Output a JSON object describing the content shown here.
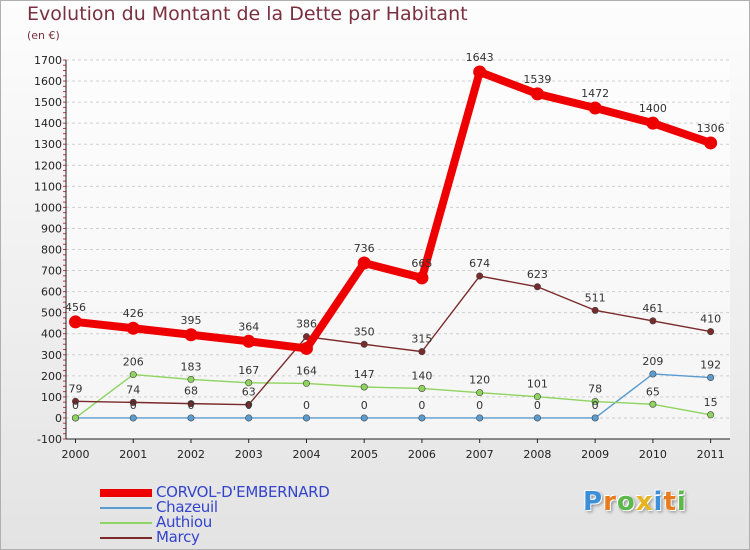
{
  "title": "Evolution du Montant de la Dette par Habitant",
  "subtitle": "(en €)",
  "brand": {
    "text": "Proxiti",
    "letters": [
      {
        "ch": "P",
        "color": "#3a8fd8"
      },
      {
        "ch": "r",
        "color": "#e87b1e"
      },
      {
        "ch": "o",
        "color": "#5cb84a"
      },
      {
        "ch": "x",
        "color": "#e8b41e"
      },
      {
        "ch": "i",
        "color": "#3a8fd8"
      },
      {
        "ch": "t",
        "color": "#e87b1e"
      },
      {
        "ch": "i",
        "color": "#5cb84a"
      }
    ]
  },
  "chart_data": {
    "type": "line",
    "title": "Evolution du Montant de la Dette par Habitant",
    "subtitle": "(en €)",
    "x": [
      "2000",
      "2001",
      "2002",
      "2003",
      "2004",
      "2005",
      "2006",
      "2007",
      "2008",
      "2009",
      "2010",
      "2011"
    ],
    "ylim": [
      -100,
      1700
    ],
    "yticks": [
      -100,
      0,
      100,
      200,
      300,
      400,
      500,
      600,
      700,
      800,
      900,
      1000,
      1100,
      1200,
      1300,
      1400,
      1500,
      1600,
      1700
    ],
    "ytick_labels": [
      "-100",
      "0",
      "100",
      "200",
      "300",
      "400",
      "500",
      "600",
      "700",
      "800",
      "900",
      "1000",
      "1100",
      "1200",
      "1300",
      "1400",
      "1500",
      "1600",
      "1700"
    ],
    "grid": "horizontal",
    "legend_position": "bottom-left",
    "series": [
      {
        "name": "CORVOL-D'EMBERNARD",
        "color": "#ee0000",
        "values": [
          456,
          426,
          395,
          364,
          330,
          736,
          665,
          1643,
          1539,
          1472,
          1400,
          1306
        ],
        "labels": [
          "456",
          "426",
          "395",
          "364",
          "",
          "736",
          "665",
          "1643",
          "1539",
          "1472",
          "1400",
          "1306"
        ]
      },
      {
        "name": "Chazeuil",
        "color": "#5a9bd0",
        "values": [
          0,
          0,
          0,
          0,
          0,
          0,
          0,
          0,
          0,
          0,
          209,
          192
        ],
        "labels": [
          "0",
          "0",
          "0",
          "0",
          "0",
          "0",
          "0",
          "0",
          "0",
          "0",
          "209",
          "192"
        ]
      },
      {
        "name": "Authiou",
        "color": "#8ed45e",
        "values": [
          0,
          206,
          183,
          167,
          164,
          147,
          140,
          120,
          101,
          78,
          65,
          15
        ],
        "labels": [
          "",
          "206",
          "183",
          "167",
          "164",
          "147",
          "140",
          "120",
          "101",
          "78",
          "65",
          "15"
        ]
      },
      {
        "name": "Marcy",
        "color": "#7a2a2a",
        "values": [
          79,
          74,
          68,
          63,
          386,
          350,
          315,
          674,
          623,
          511,
          461,
          410
        ],
        "labels": [
          "79",
          "74",
          "68",
          "63",
          "386",
          "350",
          "315",
          "674",
          "623",
          "511",
          "461",
          "410"
        ]
      }
    ]
  }
}
